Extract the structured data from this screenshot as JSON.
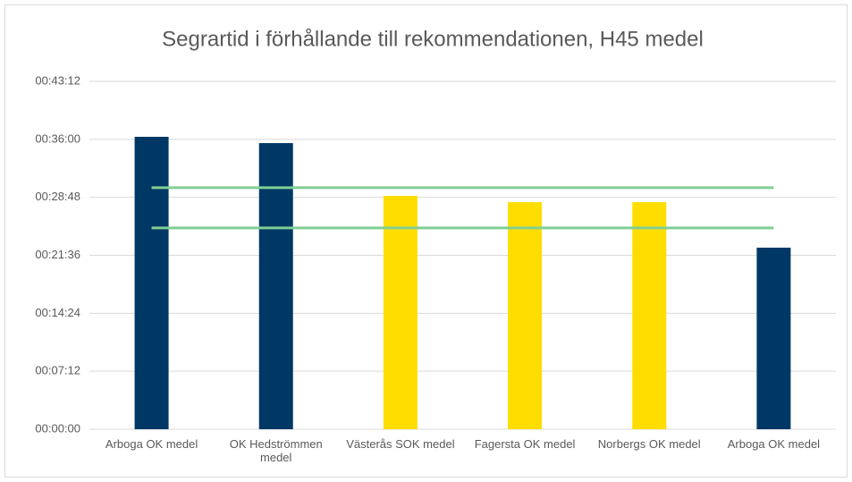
{
  "chart_data": {
    "type": "bar",
    "title": "Segrartid i förhållande till rekommendationen, H45 medel",
    "categories": [
      "Arboga OK medel",
      "OK Hedströmmen medel",
      "Västerås SOK medel",
      "Fagersta OK medel",
      "Norbergs OK medel",
      "Arboga OK medel"
    ],
    "values": [
      2179,
      2132,
      1739,
      1692,
      1692,
      1353
    ],
    "colors": [
      "#003865",
      "#003865",
      "#ffdd00",
      "#ffdd00",
      "#ffdd00",
      "#003865"
    ],
    "reference_lines": [
      1800,
      1500
    ],
    "reference_color": "#7fcf94",
    "ylim": [
      0,
      2592
    ],
    "yticks": [
      {
        "value": 0,
        "label": "00:00:00"
      },
      {
        "value": 432,
        "label": "00:07:12"
      },
      {
        "value": 864,
        "label": "00:14:24"
      },
      {
        "value": 1296,
        "label": "00:21:36"
      },
      {
        "value": 1728,
        "label": "00:28:48"
      },
      {
        "value": 2160,
        "label": "00:36:00"
      },
      {
        "value": 2592,
        "label": "00:43:12"
      }
    ],
    "grid": true
  }
}
